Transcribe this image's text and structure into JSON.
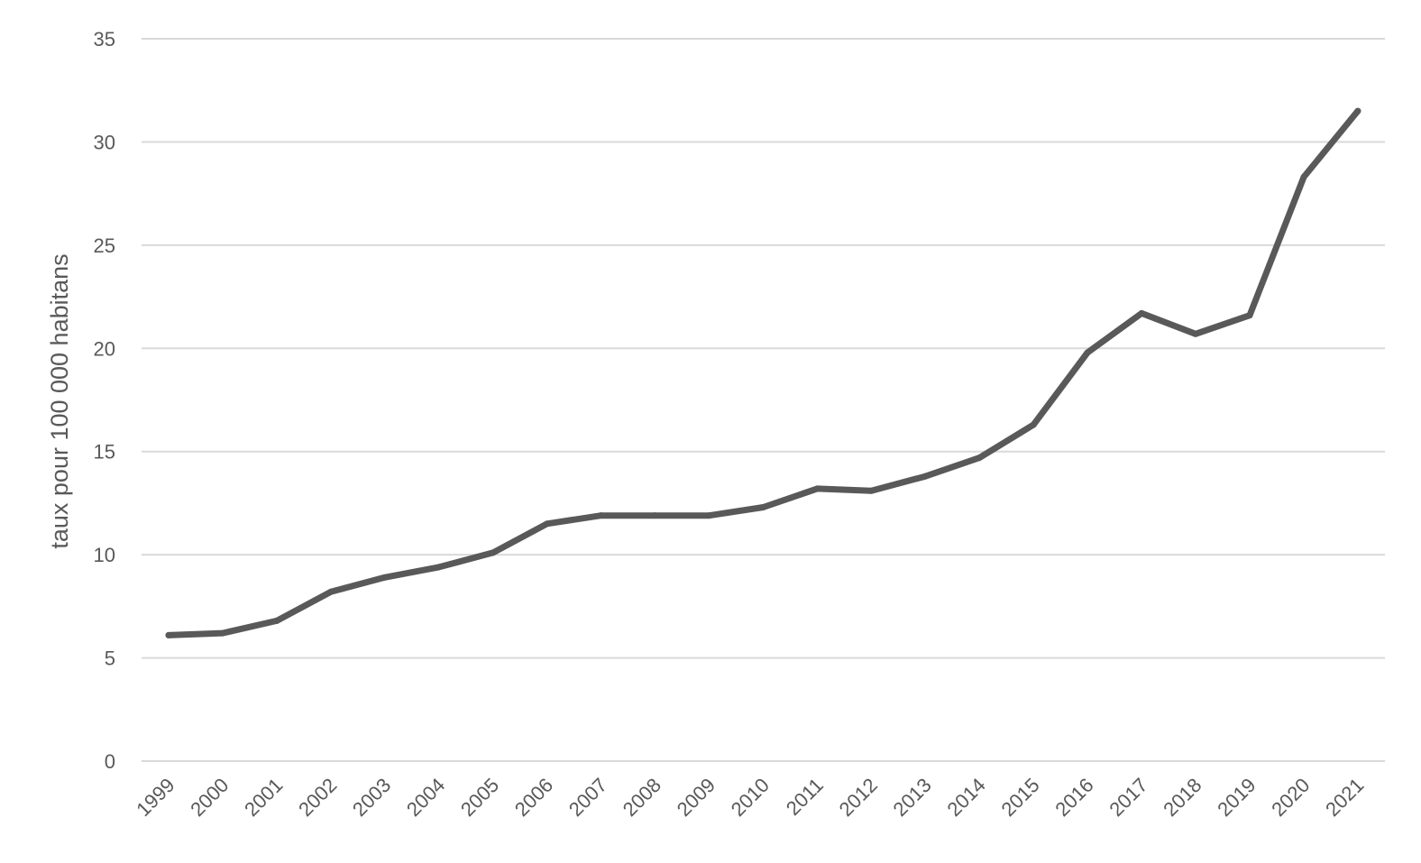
{
  "chart_data": {
    "type": "line",
    "title": "",
    "xlabel": "",
    "ylabel": "taux pour 100 000 habitans",
    "categories": [
      "1999",
      "2000",
      "2001",
      "2002",
      "2003",
      "2004",
      "2005",
      "2006",
      "2007",
      "2008",
      "2009",
      "2010",
      "2011",
      "2012",
      "2013",
      "2014",
      "2015",
      "2016",
      "2017",
      "2018",
      "2019",
      "2020",
      "2021"
    ],
    "y_ticks": [
      "0",
      "5",
      "10",
      "15",
      "20",
      "25",
      "30",
      "35"
    ],
    "ylim": [
      0,
      35
    ],
    "grid": "horizontal",
    "legend": "none",
    "series": [
      {
        "values": [
          6.1,
          6.2,
          6.8,
          8.2,
          8.9,
          9.4,
          10.1,
          11.5,
          11.9,
          11.9,
          11.9,
          12.3,
          13.2,
          13.1,
          13.8,
          14.7,
          16.3,
          19.8,
          21.7,
          20.7,
          21.6,
          28.3,
          31.5
        ],
        "color": "#595959"
      }
    ]
  }
}
